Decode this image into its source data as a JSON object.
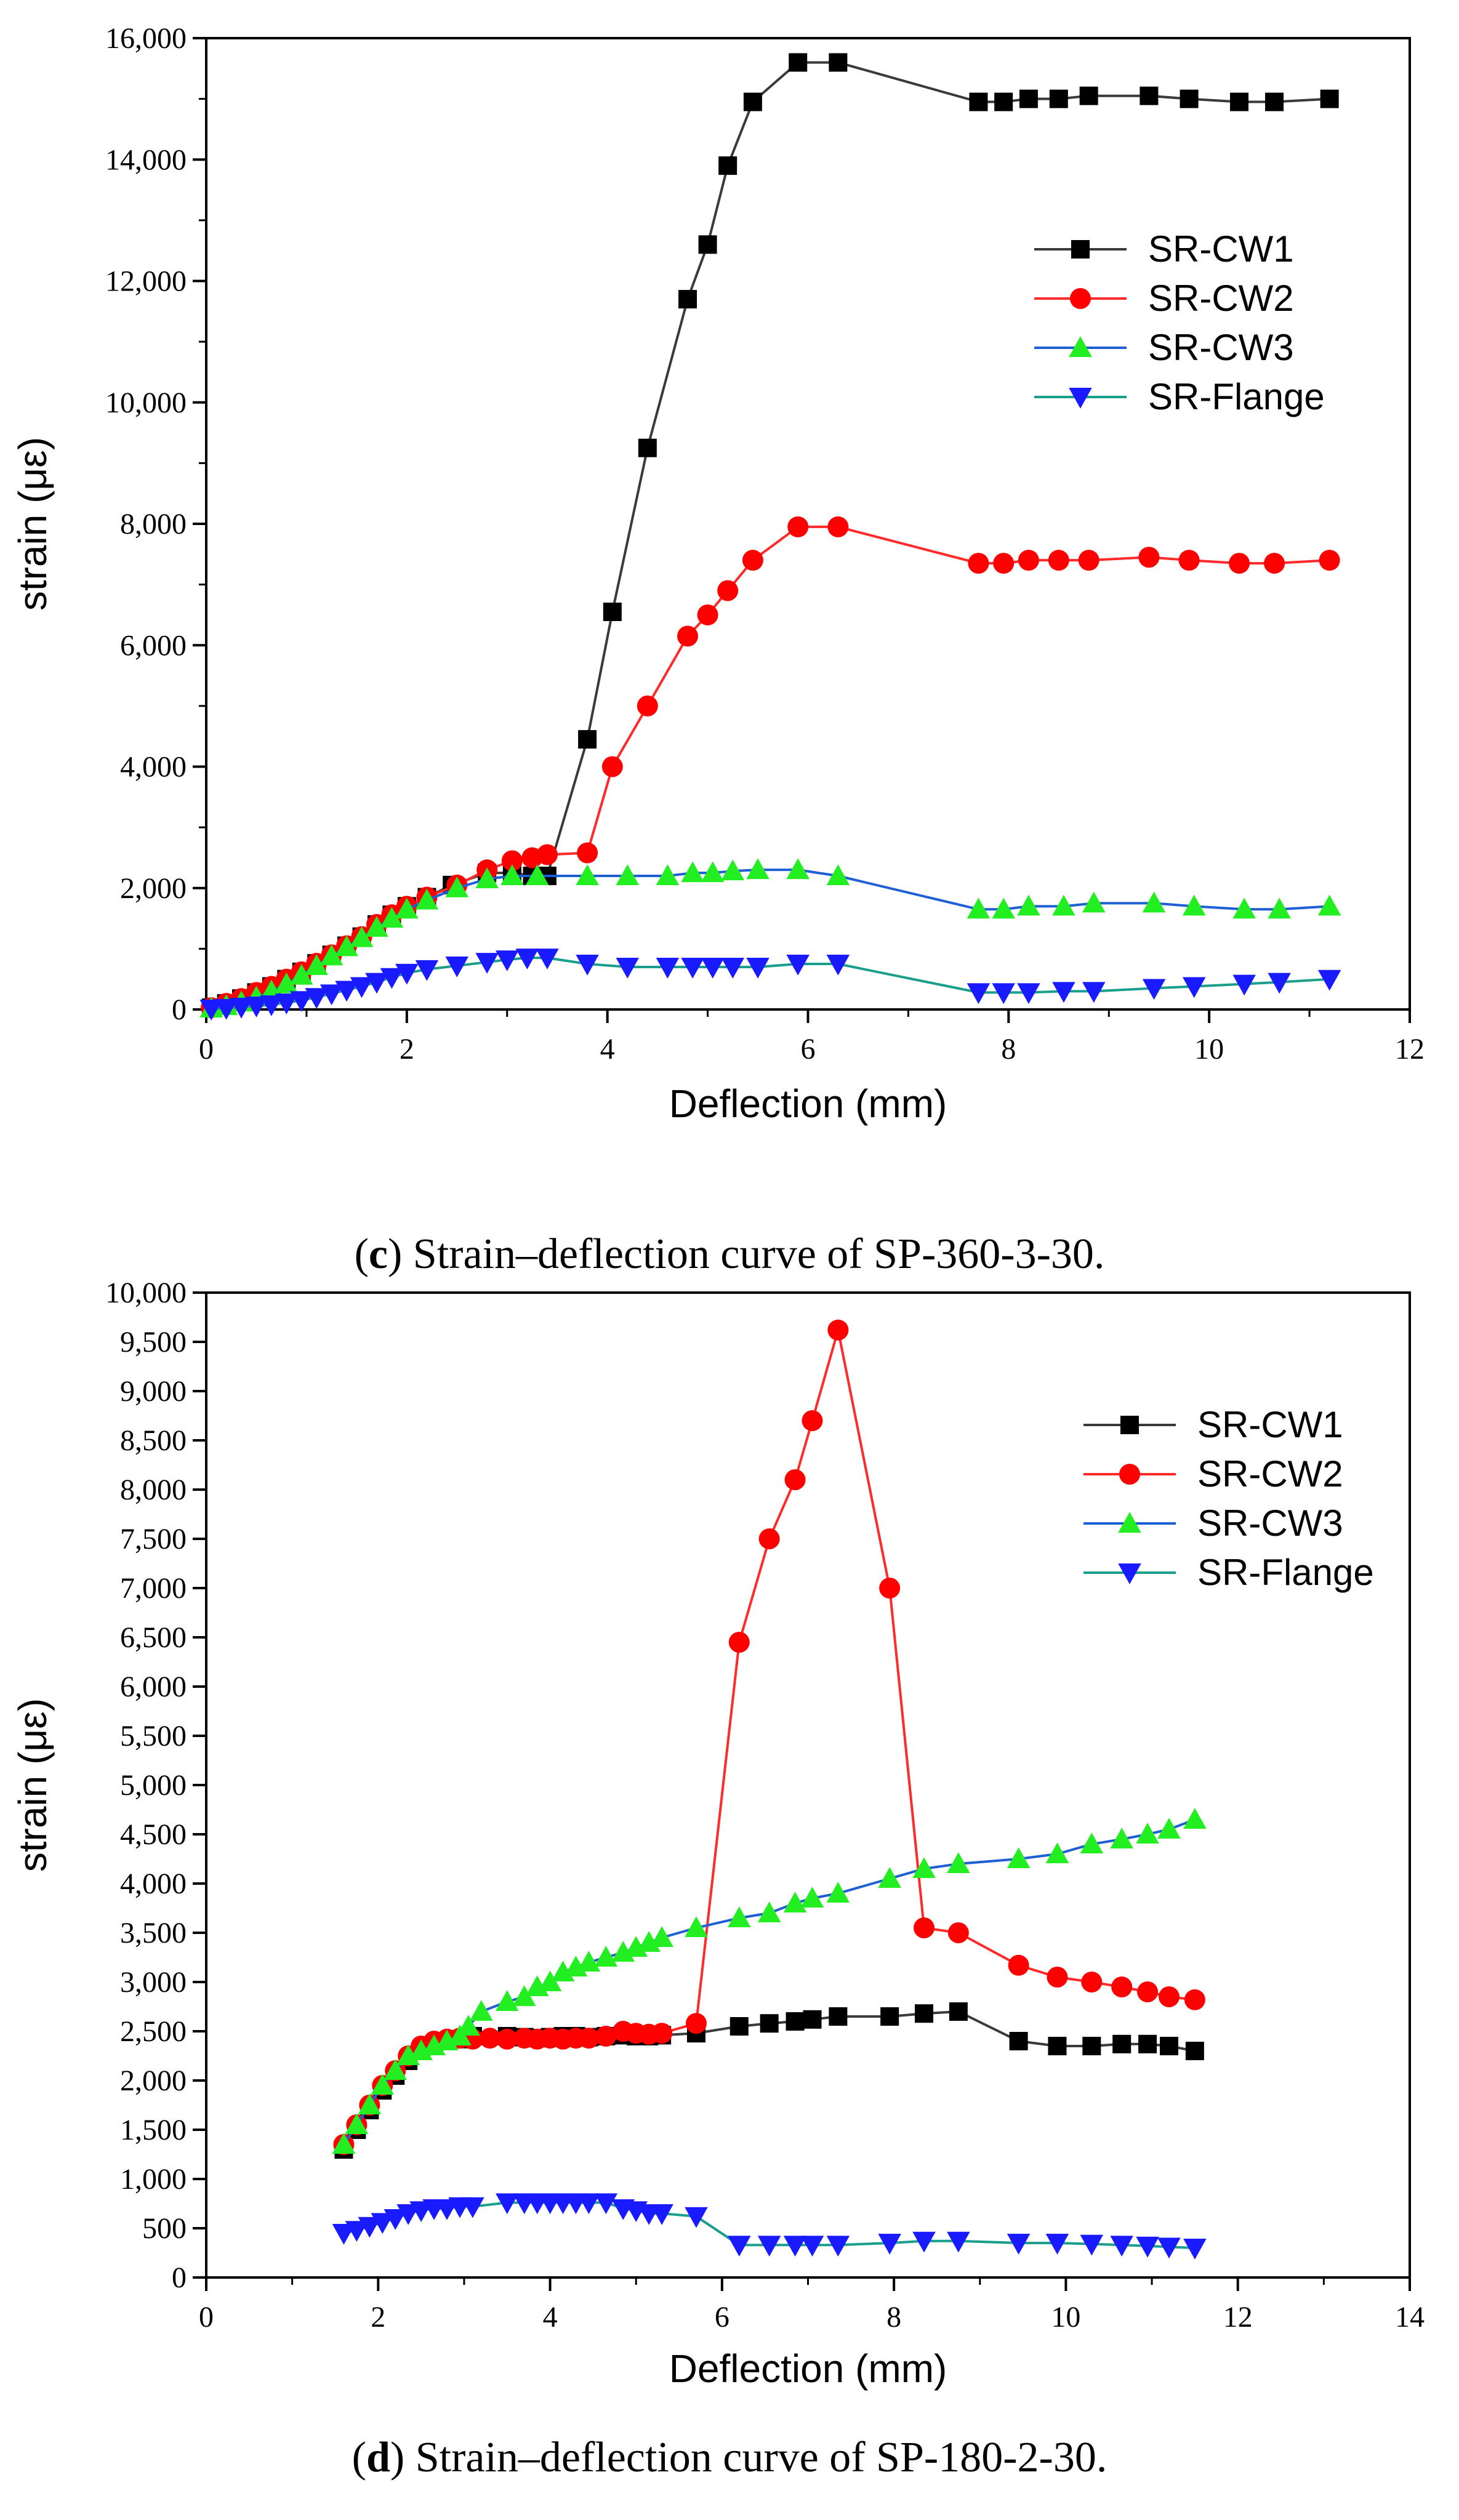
{
  "chart_data": [
    {
      "type": "line",
      "xlabel": "Deflection (mm)",
      "ylabel": "strain (με)",
      "xlim": [
        0,
        12
      ],
      "ylim": [
        0,
        16000
      ],
      "x_ticks": [
        0,
        2,
        4,
        6,
        8,
        10,
        12
      ],
      "x_tick_labels": [
        "0",
        "2",
        "4",
        "6",
        "8",
        "10",
        "12"
      ],
      "y_ticks": [
        0,
        2000,
        4000,
        6000,
        8000,
        10000,
        12000,
        14000,
        16000
      ],
      "y_tick_labels": [
        "0",
        "2,000",
        "4,000",
        "6,000",
        "8,000",
        "10,000",
        "12,000",
        "14,000",
        "16,000"
      ],
      "legend_position": "top-right",
      "caption": {
        "prefix": "(",
        "letter": "c",
        "rest": ") Strain–deflection curve of SP-360-3-30."
      },
      "series": [
        {
          "name": "SR-CW1",
          "line_color": "#3a3a3a",
          "marker_color": "#000000",
          "marker": "square",
          "x": [
            0.05,
            0.2,
            0.35,
            0.5,
            0.65,
            0.8,
            0.95,
            1.1,
            1.25,
            1.4,
            1.55,
            1.7,
            1.85,
            2.0,
            2.2,
            2.45,
            2.8,
            3.05,
            3.25,
            3.4,
            3.8,
            4.05,
            4.4,
            4.8,
            5.0,
            5.2,
            5.45,
            5.9,
            6.3,
            7.7,
            7.95,
            8.2,
            8.5,
            8.8,
            9.4,
            9.8,
            10.3,
            10.65,
            11.2
          ],
          "y": [
            30,
            100,
            180,
            280,
            380,
            500,
            620,
            760,
            900,
            1050,
            1200,
            1400,
            1560,
            1700,
            1850,
            2050,
            2250,
            2250,
            2200,
            2200,
            4450,
            6550,
            9250,
            11700,
            12600,
            13900,
            14950,
            15600,
            15600,
            14950,
            14950,
            15000,
            15000,
            15050,
            15050,
            15000,
            14950,
            14950,
            15000
          ]
        },
        {
          "name": "SR-CW2",
          "line_color": "#ff2a2a",
          "marker_color": "#ff0000",
          "marker": "circle",
          "x": [
            0.05,
            0.2,
            0.35,
            0.5,
            0.65,
            0.8,
            0.95,
            1.1,
            1.25,
            1.4,
            1.55,
            1.7,
            1.85,
            2.0,
            2.2,
            2.5,
            2.8,
            3.05,
            3.25,
            3.4,
            3.8,
            4.05,
            4.4,
            4.8,
            5.0,
            5.2,
            5.45,
            5.9,
            6.3,
            7.7,
            7.95,
            8.2,
            8.5,
            8.8,
            9.4,
            9.8,
            10.3,
            10.65,
            11.2
          ],
          "y": [
            30,
            100,
            180,
            280,
            380,
            500,
            620,
            760,
            900,
            1050,
            1200,
            1400,
            1560,
            1700,
            1850,
            2050,
            2300,
            2450,
            2500,
            2550,
            2580,
            4000,
            5000,
            6150,
            6500,
            6900,
            7400,
            7950,
            7950,
            7350,
            7350,
            7400,
            7400,
            7400,
            7450,
            7400,
            7350,
            7350,
            7400
          ]
        },
        {
          "name": "SR-CW3",
          "line_color": "#1f5fd6",
          "marker_color": "#22ee22",
          "marker": "triangle-up",
          "x": [
            0.05,
            0.2,
            0.35,
            0.5,
            0.65,
            0.8,
            0.95,
            1.1,
            1.25,
            1.4,
            1.55,
            1.7,
            1.85,
            2.0,
            2.2,
            2.5,
            2.8,
            3.05,
            3.3,
            3.8,
            4.2,
            4.6,
            4.85,
            5.05,
            5.25,
            5.5,
            5.9,
            6.3,
            7.7,
            7.95,
            8.2,
            8.55,
            8.85,
            9.45,
            9.85,
            10.35,
            10.7,
            11.2
          ],
          "y": [
            20,
            60,
            120,
            200,
            300,
            420,
            560,
            720,
            880,
            1030,
            1180,
            1350,
            1500,
            1650,
            1800,
            2000,
            2150,
            2200,
            2200,
            2200,
            2200,
            2200,
            2250,
            2250,
            2280,
            2300,
            2300,
            2200,
            1650,
            1650,
            1700,
            1700,
            1750,
            1750,
            1700,
            1650,
            1650,
            1700
          ]
        },
        {
          "name": "SR-Flange",
          "line_color": "#1a9e8c",
          "marker_color": "#1a1aff",
          "marker": "triangle-down",
          "x": [
            0.05,
            0.2,
            0.35,
            0.5,
            0.65,
            0.8,
            0.95,
            1.1,
            1.25,
            1.4,
            1.55,
            1.7,
            1.85,
            2.0,
            2.2,
            2.5,
            2.8,
            3.0,
            3.2,
            3.4,
            3.8,
            4.2,
            4.6,
            4.85,
            5.05,
            5.25,
            5.5,
            5.9,
            6.3,
            7.7,
            7.95,
            8.2,
            8.55,
            8.85,
            9.45,
            9.85,
            10.35,
            10.7,
            11.2
          ],
          "y": [
            10,
            20,
            40,
            60,
            80,
            110,
            150,
            200,
            260,
            320,
            380,
            450,
            530,
            600,
            660,
            720,
            780,
            820,
            850,
            850,
            750,
            700,
            700,
            700,
            700,
            700,
            700,
            750,
            750,
            280,
            280,
            280,
            300,
            300,
            350,
            380,
            420,
            450,
            500
          ]
        }
      ]
    },
    {
      "type": "line",
      "xlabel": "Deflection (mm)",
      "ylabel": "strain (με)",
      "xlim": [
        0,
        14
      ],
      "ylim": [
        0,
        10000
      ],
      "x_ticks": [
        0,
        2,
        4,
        6,
        8,
        10,
        12,
        14
      ],
      "x_tick_labels": [
        "0",
        "2",
        "4",
        "6",
        "8",
        "10",
        "12",
        "14"
      ],
      "y_ticks": [
        0,
        500,
        1000,
        1500,
        2000,
        2500,
        3000,
        3500,
        4000,
        4500,
        5000,
        5500,
        6000,
        6500,
        7000,
        7500,
        8000,
        8500,
        9000,
        9500,
        10000
      ],
      "y_tick_labels": [
        "0",
        "500",
        "1,000",
        "1,500",
        "2,000",
        "2,500",
        "3,000",
        "3,500",
        "4,000",
        "4,500",
        "5,000",
        "5,500",
        "6,000",
        "6,500",
        "7,000",
        "7,500",
        "8,000",
        "8,500",
        "9,000",
        "9,500",
        "10,000"
      ],
      "legend_position": "top-right",
      "caption": {
        "prefix": "(",
        "letter": "d",
        "rest": ") Strain–deflection curve of SP-180-2-30."
      },
      "series": [
        {
          "name": "SR-CW1",
          "line_color": "#3a3a3a",
          "marker_color": "#000000",
          "marker": "square",
          "x": [
            1.6,
            1.75,
            1.9,
            2.05,
            2.2,
            2.35,
            2.5,
            2.65,
            2.8,
            2.95,
            3.1,
            3.5,
            3.7,
            3.85,
            4.0,
            4.15,
            4.3,
            4.45,
            4.65,
            4.85,
            5.0,
            5.15,
            5.3,
            5.7,
            6.2,
            6.55,
            6.85,
            7.05,
            7.35,
            7.95,
            8.35,
            8.75,
            9.45,
            9.9,
            10.3,
            10.65,
            10.95,
            11.2,
            11.5
          ],
          "y": [
            1300,
            1500,
            1700,
            1900,
            2050,
            2200,
            2300,
            2350,
            2400,
            2420,
            2450,
            2450,
            2440,
            2430,
            2440,
            2450,
            2450,
            2440,
            2450,
            2460,
            2450,
            2450,
            2460,
            2480,
            2550,
            2580,
            2600,
            2620,
            2650,
            2650,
            2680,
            2700,
            2400,
            2350,
            2350,
            2370,
            2370,
            2350,
            2300
          ]
        },
        {
          "name": "SR-CW2",
          "line_color": "#ff2a2a",
          "marker_color": "#ff0000",
          "marker": "circle",
          "x": [
            1.6,
            1.75,
            1.9,
            2.05,
            2.2,
            2.35,
            2.5,
            2.65,
            2.8,
            2.95,
            3.1,
            3.3,
            3.5,
            3.7,
            3.85,
            4.0,
            4.15,
            4.3,
            4.45,
            4.65,
            4.85,
            5.0,
            5.15,
            5.3,
            5.7,
            6.2,
            6.55,
            6.85,
            7.05,
            7.35,
            7.95,
            8.35,
            8.75,
            9.45,
            9.9,
            10.3,
            10.65,
            10.95,
            11.2,
            11.5
          ],
          "y": [
            1350,
            1550,
            1750,
            1950,
            2100,
            2250,
            2350,
            2400,
            2420,
            2430,
            2420,
            2430,
            2420,
            2430,
            2420,
            2430,
            2420,
            2430,
            2430,
            2450,
            2500,
            2480,
            2470,
            2480,
            2580,
            6450,
            7500,
            8100,
            8700,
            9620,
            7000,
            3550,
            3500,
            3170,
            3050,
            3000,
            2950,
            2900,
            2850,
            2820
          ]
        },
        {
          "name": "SR-CW3",
          "line_color": "#1f5fd6",
          "marker_color": "#22ee22",
          "marker": "triangle-up",
          "x": [
            1.6,
            1.75,
            1.9,
            2.05,
            2.2,
            2.35,
            2.5,
            2.65,
            2.8,
            2.95,
            3.05,
            3.2,
            3.5,
            3.7,
            3.85,
            4.0,
            4.15,
            4.3,
            4.45,
            4.65,
            4.85,
            5.0,
            5.15,
            5.3,
            5.7,
            6.2,
            6.55,
            6.85,
            7.05,
            7.35,
            7.95,
            8.35,
            8.75,
            9.45,
            9.9,
            10.3,
            10.65,
            10.95,
            11.2,
            11.5
          ],
          "y": [
            1350,
            1550,
            1750,
            1950,
            2100,
            2250,
            2300,
            2350,
            2400,
            2450,
            2550,
            2700,
            2800,
            2850,
            2950,
            3000,
            3100,
            3150,
            3200,
            3250,
            3300,
            3350,
            3400,
            3450,
            3550,
            3650,
            3700,
            3800,
            3850,
            3900,
            4050,
            4150,
            4200,
            4250,
            4300,
            4400,
            4450,
            4500,
            4550,
            4650
          ]
        },
        {
          "name": "SR-Flange",
          "line_color": "#1a9e8c",
          "marker_color": "#1a1aff",
          "marker": "triangle-down",
          "x": [
            1.6,
            1.75,
            1.9,
            2.05,
            2.2,
            2.35,
            2.5,
            2.65,
            2.8,
            2.95,
            3.1,
            3.5,
            3.7,
            3.85,
            4.0,
            4.15,
            4.3,
            4.45,
            4.65,
            4.85,
            5.0,
            5.15,
            5.3,
            5.7,
            6.2,
            6.55,
            6.85,
            7.05,
            7.35,
            7.95,
            8.35,
            8.75,
            9.45,
            9.9,
            10.3,
            10.65,
            10.95,
            11.2,
            11.5
          ],
          "y": [
            450,
            480,
            520,
            560,
            600,
            650,
            680,
            700,
            700,
            720,
            720,
            760,
            760,
            760,
            760,
            760,
            760,
            760,
            760,
            700,
            680,
            650,
            650,
            620,
            330,
            330,
            330,
            330,
            330,
            350,
            370,
            370,
            350,
            350,
            340,
            330,
            320,
            310,
            300
          ]
        }
      ]
    }
  ]
}
